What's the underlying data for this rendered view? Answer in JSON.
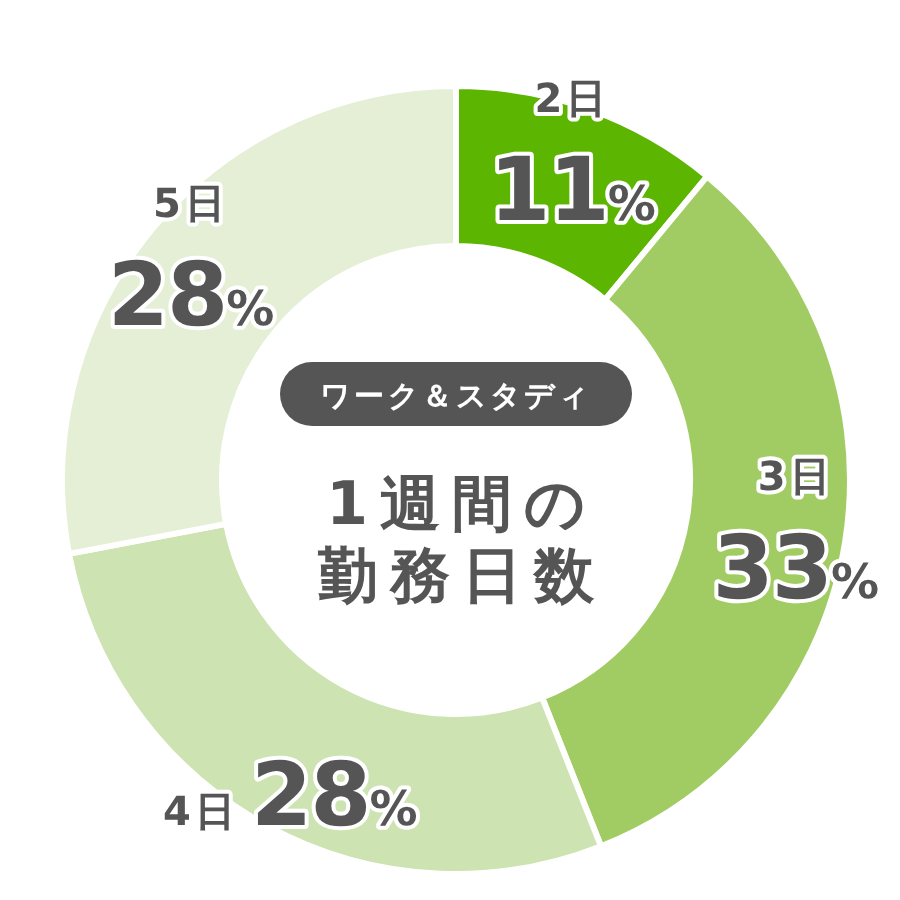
{
  "chart_data": {
    "type": "donut",
    "title": "1週間の勤務日数",
    "subtitle": "ワーク＆スタディ",
    "categories": [
      "2日",
      "3日",
      "4日",
      "5日"
    ],
    "values": [
      11,
      33,
      28,
      28
    ],
    "colors": [
      "#5cb500",
      "#a1cc63",
      "#cde3b1",
      "#e4efd6"
    ],
    "value_labels": [
      "11%",
      "33%",
      "28%",
      "28%"
    ]
  }
}
